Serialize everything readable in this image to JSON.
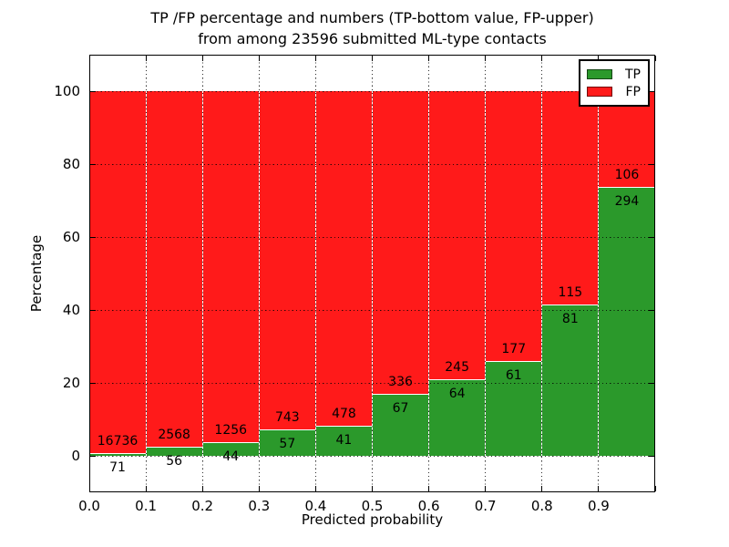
{
  "chart_data": {
    "type": "bar",
    "stacked": true,
    "title_line1": "TP /FP percentage and numbers (TP-bottom value, FP-upper)",
    "title_line2": "from among 23596 submitted ML-type contacts",
    "total_submitted_contacts": 23596,
    "xlabel": "Predicted probability",
    "ylabel": "Percentage",
    "xlim": [
      0,
      1
    ],
    "ylim": [
      -10,
      110
    ],
    "bar_width": 0.1,
    "bin_starts": [
      0.0,
      0.1,
      0.2,
      0.3,
      0.4,
      0.5,
      0.6,
      0.7,
      0.8,
      0.9
    ],
    "x_tick_labels": [
      "0.0",
      "0.1",
      "0.2",
      "0.3",
      "0.4",
      "0.5",
      "0.6",
      "0.7",
      "0.8",
      "0.9"
    ],
    "y_tick_values": [
      0,
      20,
      40,
      60,
      80,
      100
    ],
    "series": [
      {
        "name": "TP",
        "color": "#2b992b",
        "counts": [
          71,
          56,
          44,
          57,
          41,
          67,
          64,
          61,
          81,
          294
        ]
      },
      {
        "name": "FP",
        "color": "#ff1a1a",
        "counts": [
          16736,
          2568,
          1256,
          743,
          478,
          336,
          245,
          177,
          115,
          106
        ]
      }
    ],
    "tp_percent": [
      0.42,
      2.13,
      3.38,
      7.13,
      7.9,
      16.63,
      20.71,
      25.63,
      41.33,
      73.5
    ],
    "grid": "dotted black, drawn above bars",
    "legend_position": "upper right"
  }
}
